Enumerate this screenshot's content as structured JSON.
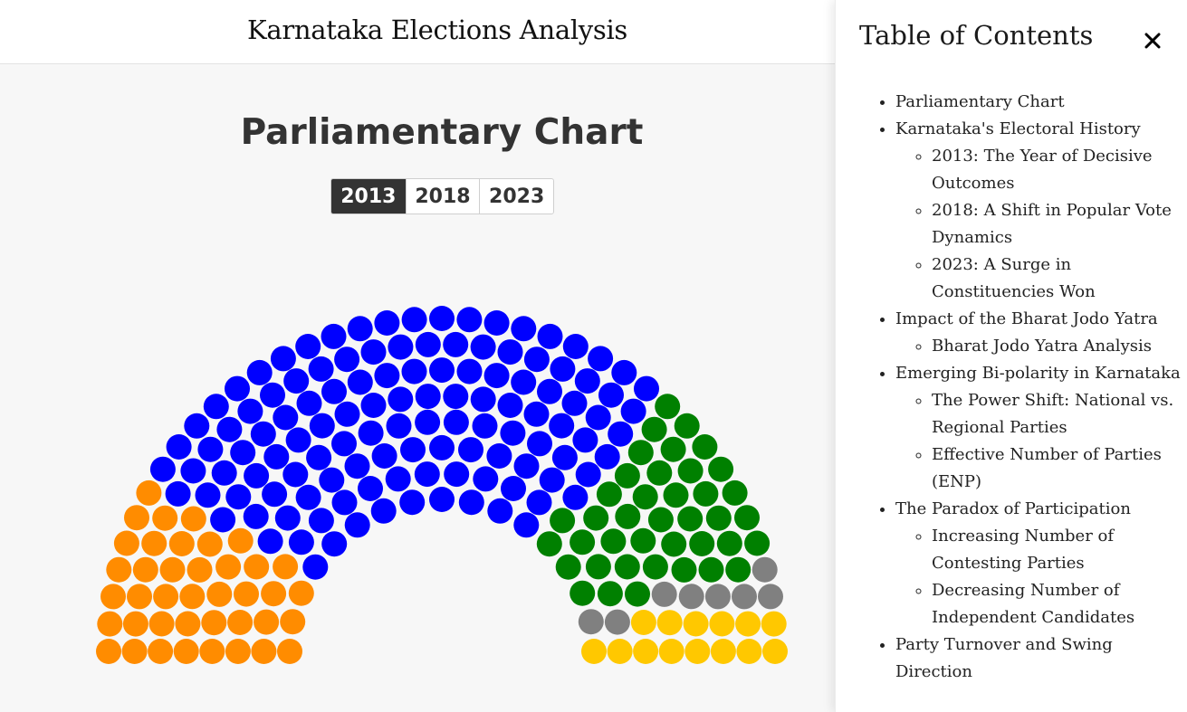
{
  "header": {
    "title": "Karnataka Elections Analysis"
  },
  "section": {
    "title": "Parliamentary Chart"
  },
  "year_selector": {
    "options": [
      "2013",
      "2018",
      "2023"
    ],
    "selected": "2013"
  },
  "chart_data": {
    "type": "parliament",
    "total_seats": 224,
    "rows": 8,
    "series": [
      {
        "seats": 40,
        "color": "#ff8c00"
      },
      {
        "seats": 122,
        "color": "#0000ff"
      },
      {
        "seats": 40,
        "color": "#008000"
      },
      {
        "seats": 8,
        "color": "#808080"
      },
      {
        "seats": 14,
        "color": "#ffc800"
      }
    ]
  },
  "toc": {
    "heading": "Table of Contents",
    "close_icon": "close-icon",
    "items": [
      {
        "label": "Parliamentary Chart",
        "children": []
      },
      {
        "label": "Karnataka's Electoral History",
        "children": [
          "2013: The Year of Decisive Outcomes",
          "2018: A Shift in Popular Vote Dynamics",
          "2023: A Surge in Constituencies Won"
        ]
      },
      {
        "label": "Impact of the Bharat Jodo Yatra",
        "children": [
          "Bharat Jodo Yatra Analysis"
        ]
      },
      {
        "label": "Emerging Bi-polarity in Karnataka",
        "children": [
          "The Power Shift: National vs. Regional Parties",
          "Effective Number of Parties (ENP)"
        ]
      },
      {
        "label": "The Paradox of Participation",
        "children": [
          "Increasing Number of Contesting Parties",
          "Decreasing Number of Independent Candidates"
        ]
      },
      {
        "label": "Party Turnover and Swing Direction",
        "children": []
      }
    ]
  }
}
